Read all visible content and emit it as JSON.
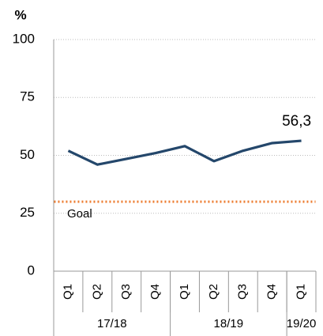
{
  "chart_data": {
    "type": "line",
    "y_label": "%",
    "categories": [
      "Q1",
      "Q2",
      "Q3",
      "Q4",
      "Q1",
      "Q2",
      "Q3",
      "Q4",
      "Q1"
    ],
    "groups": [
      {
        "label": "17/18",
        "count": 4
      },
      {
        "label": "18/19",
        "count": 4
      },
      {
        "label": "19/20",
        "count": 1
      }
    ],
    "series": [
      {
        "color": "#24476b",
        "values": [
          52,
          46,
          48.5,
          51,
          54,
          47.5,
          52,
          55.3,
          56.3
        ],
        "value_labels": [
          null,
          null,
          null,
          null,
          null,
          null,
          null,
          null,
          "56,3"
        ]
      },
      {
        "name": "Goal",
        "color": "#ed7d31",
        "dashed": true,
        "values": [
          30,
          30,
          30,
          30,
          30,
          30,
          30,
          30,
          30
        ]
      }
    ],
    "ylim": [
      0,
      100
    ],
    "yticks": [
      0,
      25,
      50,
      75,
      100
    ],
    "grid": true
  }
}
